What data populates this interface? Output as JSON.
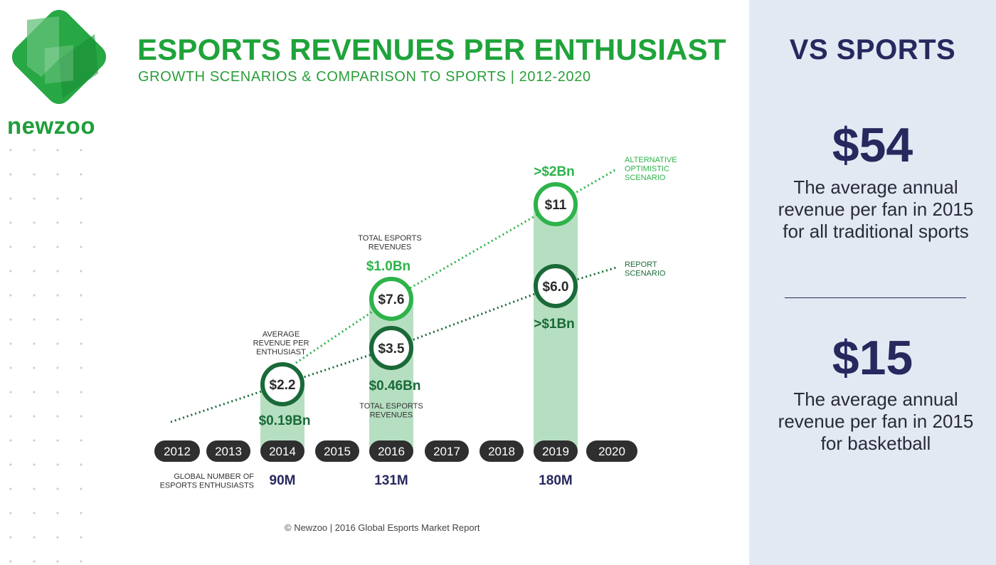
{
  "brand": {
    "logo_text": "newzoo"
  },
  "header": {
    "title": "ESPORTS REVENUES PER ENTHUSIAST",
    "subtitle": "GROWTH SCENARIOS & COMPARISON TO SPORTS | 2012-2020"
  },
  "chart_data": {
    "type": "bar",
    "years": [
      "2012",
      "2013",
      "2014",
      "2015",
      "2016",
      "2017",
      "2018",
      "2019",
      "2020"
    ],
    "bars": [
      {
        "year": "2014",
        "arpu": "$2.2",
        "revenue": "$0.19Bn",
        "enthusiasts": "90M"
      },
      {
        "year": "2016",
        "arpu_report": "$3.5",
        "arpu_alt": "$7.6",
        "revenue_report": "$0.46Bn",
        "revenue_alt": "$1.0Bn",
        "enthusiasts": "131M"
      },
      {
        "year": "2019",
        "arpu_report": "$6.0",
        "arpu_alt": "$11",
        "revenue_report": ">$1Bn",
        "revenue_alt": ">$2Bn",
        "enthusiasts": "180M"
      }
    ],
    "series": [
      {
        "name": "REPORT SCENARIO",
        "values": [
          2.2,
          3.5,
          6.0
        ],
        "color": "#1a6a38"
      },
      {
        "name": "ALTERNATIVE OPTIMISTIC SCENARIO",
        "values": [
          2.2,
          7.6,
          11
        ],
        "color": "#2db34a"
      }
    ],
    "annotations": {
      "arpu_label": "AVERAGE REVENUE PER ENTHUSIAST",
      "revenue_label_top": "TOTAL ESPORTS REVENUES",
      "revenue_label_bottom": "TOTAL ESPORTS REVENUES",
      "alt_label": "ALTERNATIVE OPTIMISTIC SCENARIO",
      "report_label": "REPORT SCENARIO",
      "enthusiasts_label": "GLOBAL NUMBER OF ESPORTS ENTHUSIASTS"
    }
  },
  "footer": {
    "copyright": "© Newzoo | 2016 Global Esports Market Report"
  },
  "sidebar": {
    "title": "VS SPORTS",
    "stats": [
      {
        "value": "$54",
        "desc": "The average annual revenue per fan in 2015 for all traditional sports"
      },
      {
        "value": "$15",
        "desc": "The average annual revenue per fan in 2015 for basketball"
      }
    ]
  },
  "colors": {
    "brand_green": "#1fa33a",
    "dark_green": "#1a6a38",
    "light_green": "#2db34a",
    "bar_fill": "#b6dfc1",
    "pill": "#2f2f2f",
    "navy": "#27285e",
    "panel": "#e2e9f3"
  }
}
